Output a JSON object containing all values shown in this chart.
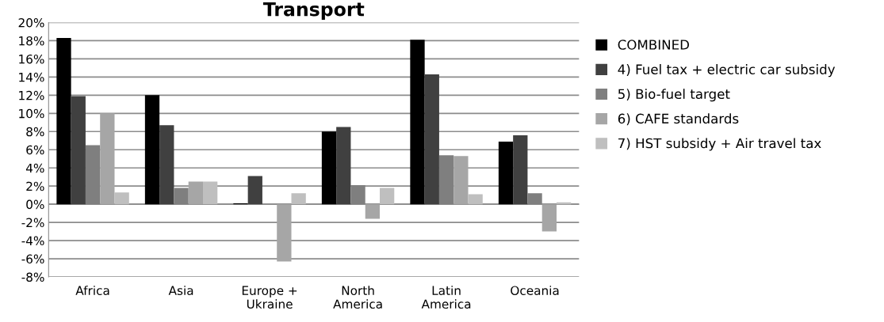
{
  "chart_data": {
    "type": "bar",
    "title": "Transport",
    "categories": [
      "Africa",
      "Asia",
      "Europe +\nUkraine",
      "North\nAmerica",
      "Latin\nAmerica",
      "Oceania"
    ],
    "series": [
      {
        "name": "COMBINED",
        "color": "#000000",
        "values": [
          18.3,
          12.0,
          0.1,
          8.0,
          18.1,
          6.9
        ]
      },
      {
        "name": "4) Fuel tax + electric car subsidy",
        "color": "#404040",
        "values": [
          11.9,
          8.7,
          3.1,
          8.5,
          14.3,
          7.6
        ]
      },
      {
        "name": "5) Bio-fuel target",
        "color": "#7f7f7f",
        "values": [
          6.5,
          1.8,
          0,
          2.1,
          5.4,
          1.2
        ]
      },
      {
        "name": "6) CAFE standards",
        "color": "#a6a6a6",
        "values": [
          10.0,
          2.5,
          -6.3,
          -1.6,
          5.3,
          -3.0
        ]
      },
      {
        "name": "7) HST subsidy + Air travel tax",
        "color": "#bfbfbf",
        "values": [
          1.3,
          2.5,
          1.2,
          1.8,
          1.1,
          0.2
        ]
      }
    ],
    "ylim": [
      -8,
      20
    ],
    "yticks": [
      {
        "value": -8,
        "label": "-8%"
      },
      {
        "value": -6,
        "label": "-6%"
      },
      {
        "value": -4,
        "label": "-4%"
      },
      {
        "value": -2,
        "label": "-2%"
      },
      {
        "value": 0,
        "label": "0%"
      },
      {
        "value": 2,
        "label": "2%"
      },
      {
        "value": 4,
        "label": "4%"
      },
      {
        "value": 6,
        "label": "6%"
      },
      {
        "value": 8,
        "label": "8%"
      },
      {
        "value": 10,
        "label": "10%"
      },
      {
        "value": 12,
        "label": "12%"
      },
      {
        "value": 14,
        "label": "14%"
      },
      {
        "value": 16,
        "label": "16%"
      },
      {
        "value": 18,
        "label": "18%"
      },
      {
        "value": 20,
        "label": "20%"
      }
    ],
    "grid": "y",
    "legend": "right"
  }
}
